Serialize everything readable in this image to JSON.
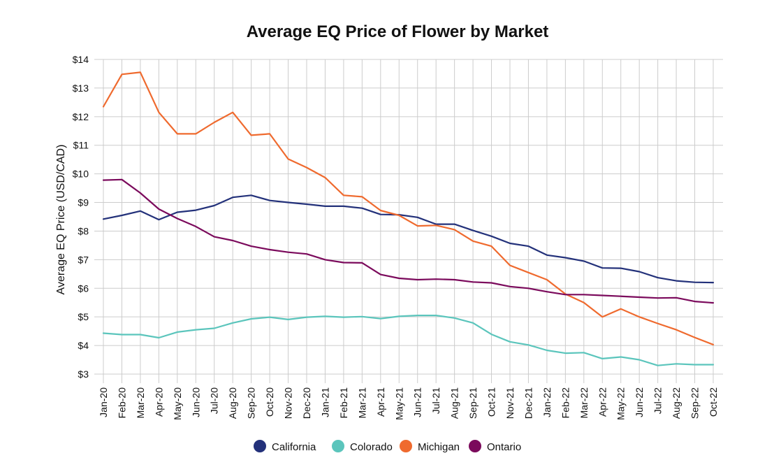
{
  "chart_data": {
    "type": "line",
    "title": "Average EQ Price of Flower by Market",
    "xlabel": "",
    "ylabel": "Average EQ Price (USD/CAD)",
    "ylim": [
      3,
      14
    ],
    "yticks": [
      3,
      4,
      5,
      6,
      7,
      8,
      9,
      10,
      11,
      12,
      13,
      14
    ],
    "ytick_labels": [
      "$3",
      "$4",
      "$5",
      "$6",
      "$7",
      "$8",
      "$9",
      "$10",
      "$11",
      "$12",
      "$13",
      "$14"
    ],
    "grid": true,
    "legend_position": "bottom",
    "categories": [
      "Jan-20",
      "Feb-20",
      "Mar-20",
      "Apr-20",
      "May-20",
      "Jun-20",
      "Jul-20",
      "Aug-20",
      "Sep-20",
      "Oct-20",
      "Nov-20",
      "Dec-20",
      "Jan-21",
      "Feb-21",
      "Mar-21",
      "Apr-21",
      "May-21",
      "Jun-21",
      "Jul-21",
      "Aug-21",
      "Sep-21",
      "Oct-21",
      "Nov-21",
      "Dec-21",
      "Jan-22",
      "Feb-22",
      "Mar-22",
      "Apr-22",
      "May-22",
      "Jun-22",
      "Jul-22",
      "Aug-22",
      "Sep-22",
      "Oct-22"
    ],
    "series": [
      {
        "name": "California",
        "color": "#23317a",
        "values": [
          8.42,
          8.55,
          8.7,
          8.4,
          8.66,
          8.73,
          8.89,
          9.18,
          9.25,
          9.07,
          9.0,
          8.94,
          8.87,
          8.87,
          8.8,
          8.58,
          8.57,
          8.48,
          8.24,
          8.24,
          8.02,
          7.82,
          7.57,
          7.47,
          7.16,
          7.07,
          6.95,
          6.71,
          6.7,
          6.58,
          6.37,
          6.26,
          6.21,
          6.2
        ]
      },
      {
        "name": "Colorado",
        "color": "#5bc5bc",
        "values": [
          4.43,
          4.38,
          4.38,
          4.27,
          4.47,
          4.55,
          4.6,
          4.79,
          4.93,
          4.99,
          4.91,
          4.99,
          5.02,
          4.99,
          5.01,
          4.94,
          5.02,
          5.05,
          5.05,
          4.96,
          4.79,
          4.39,
          4.13,
          4.02,
          3.83,
          3.73,
          3.75,
          3.54,
          3.6,
          3.5,
          3.3,
          3.36,
          3.33,
          3.33
        ]
      },
      {
        "name": "Michigan",
        "color": "#ef6a2e",
        "values": [
          12.35,
          13.48,
          13.55,
          12.15,
          11.4,
          11.4,
          11.8,
          12.15,
          11.35,
          11.4,
          10.52,
          10.22,
          9.87,
          9.25,
          9.2,
          8.72,
          8.55,
          8.18,
          8.2,
          8.05,
          7.65,
          7.47,
          6.8,
          6.55,
          6.3,
          5.8,
          5.5,
          5.0,
          5.28,
          5.0,
          4.77,
          4.55,
          4.28,
          4.03
        ]
      },
      {
        "name": "Ontario",
        "color": "#7b0a5c",
        "values": [
          9.78,
          9.8,
          9.33,
          8.77,
          8.44,
          8.16,
          7.8,
          7.67,
          7.47,
          7.35,
          7.26,
          7.2,
          7.0,
          6.9,
          6.89,
          6.48,
          6.35,
          6.3,
          6.32,
          6.3,
          6.22,
          6.19,
          6.06,
          6.0,
          5.88,
          5.78,
          5.78,
          5.75,
          5.72,
          5.69,
          5.66,
          5.67,
          5.54,
          5.49
        ]
      }
    ]
  }
}
